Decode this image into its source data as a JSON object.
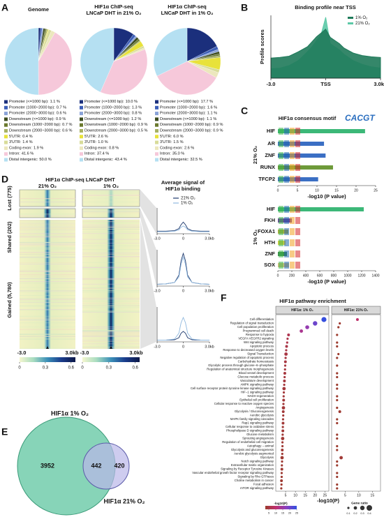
{
  "chart_data": [
    {
      "type": "pie",
      "panel": "A",
      "title": [
        "Genome"
      ],
      "categories": [
        "Promoter (<=1000 bp):",
        "Promoter (1000~2000 bp):",
        "Promoter (2000~3000 bp):",
        "Downstream (<=1000 bp):",
        "Downstream (1000~2000 bp):",
        "Downstream (2000~3000 bp):",
        "5'UTR:",
        "3'UTR:",
        "Coding exon:",
        "Intron:",
        "Distal intergenic:"
      ],
      "values": [
        1.1,
        0.7,
        0.6,
        0.9,
        0.7,
        0.6,
        0.4,
        1.4,
        1.9,
        41.6,
        50.0
      ],
      "value_labels": [
        "1.1 %",
        "0.7 %",
        "0.6 %",
        "0.9 %",
        "0.7 %",
        "0.6 %",
        "0.4 %",
        "1.4 %",
        "1.9 %",
        "41.6 %",
        "50.0 %"
      ],
      "colors": [
        "#1b2f7c",
        "#3d5fb8",
        "#8aa2d8",
        "#3b4a1e",
        "#6b7a2e",
        "#a8b264",
        "#e8e23a",
        "#d8dc9a",
        "#ece7bd",
        "#f6c8da",
        "#b5e0f2"
      ]
    },
    {
      "type": "pie",
      "title": [
        "HIF1α ChIP-seq",
        "LNCaP DHT in 21% O₂"
      ],
      "categories": [
        "Promoter (<=1000 bp):",
        "Promoter (1000~2000 bp):",
        "Promoter (2000~3000 bp):",
        "Downstream (<=1000 bp):",
        "Downstream (1000~2000 bp):",
        "Downstream (2000~3000 bp):",
        "5'UTR:",
        "3'UTR:",
        "Coding exon:",
        "Intron:",
        "Distal intergenic:"
      ],
      "values": [
        10.0,
        1.3,
        0.8,
        1.2,
        0.9,
        0.5,
        2.6,
        1.0,
        0.8,
        37.4,
        43.4
      ],
      "value_labels": [
        "10.0 %",
        "1.3 %",
        "0.8 %",
        "1.2 %",
        "0.9 %",
        "0.5 %",
        "2.6 %",
        "1.0 %",
        "0.8 %",
        "37.4 %",
        "43.4 %"
      ],
      "colors": [
        "#1b2f7c",
        "#3d5fb8",
        "#8aa2d8",
        "#3b4a1e",
        "#6b7a2e",
        "#a8b264",
        "#e8e23a",
        "#d8dc9a",
        "#ece7bd",
        "#f6c8da",
        "#b5e0f2"
      ]
    },
    {
      "type": "pie",
      "title": [
        "HIF1α ChIP-seq",
        "LNCaP DHT in 1% O₂"
      ],
      "categories": [
        "Promoter (<=1000 bp):",
        "Promoter (1000~2000 bp):",
        "Promoter (2000~3000 bp):",
        "Downstream (<=1000 bp):",
        "Downstream (1000~2000 bp):",
        "Downstream (2000~3000 bp):",
        "5'UTR:",
        "3'UTR:",
        "Coding exon:",
        "Intron:",
        "Distal intergenic:"
      ],
      "values": [
        17.7,
        1.6,
        1.1,
        1.1,
        0.9,
        0.9,
        6.0,
        1.5,
        2.6,
        35.0,
        32.5
      ],
      "value_labels": [
        "17.7 %",
        "1.6 %",
        "1.1 %",
        "1.1 %",
        "0.9 %",
        "0.9 %",
        "6.0 %",
        "1.5 %",
        "2.6 %",
        "35.0 %",
        "32.5 %"
      ],
      "colors": [
        "#1b2f7c",
        "#3d5fb8",
        "#8aa2d8",
        "#3b4a1e",
        "#6b7a2e",
        "#a8b264",
        "#e8e23a",
        "#d8dc9a",
        "#ece7bd",
        "#f6c8da",
        "#b5e0f2"
      ]
    },
    {
      "type": "area",
      "panel": "B",
      "title": "Binding profile near TSS",
      "ylabel": "Profile scores",
      "x": [
        -3,
        -2.5,
        -2,
        -1.5,
        -1,
        -0.75,
        -0.5,
        -0.25,
        0,
        0.25,
        0.5,
        0.75,
        1,
        1.5,
        2,
        2.5,
        3
      ],
      "xlim": [
        -3,
        3
      ],
      "ylim": [
        0,
        1
      ],
      "xticks": [
        {
          "value": -3,
          "label": "-3.0"
        },
        {
          "value": 0,
          "label": "TSS"
        },
        {
          "value": 3,
          "label": "3.0kb"
        }
      ],
      "series": [
        {
          "name": "1% O₂",
          "color": "#1f7a5a",
          "values": [
            0.32,
            0.33,
            0.35,
            0.42,
            0.5,
            0.58,
            0.66,
            0.72,
            0.78,
            0.65,
            0.6,
            0.55,
            0.48,
            0.4,
            0.36,
            0.34,
            0.33
          ]
        },
        {
          "name": "21% O₂",
          "color": "#5cc9a7",
          "values": [
            0.15,
            0.16,
            0.2,
            0.28,
            0.42,
            0.5,
            0.6,
            0.7,
            0.97,
            0.55,
            0.5,
            0.45,
            0.38,
            0.28,
            0.22,
            0.18,
            0.16
          ]
        }
      ]
    },
    {
      "type": "hbar",
      "panel": "C",
      "title": "HIF1α consensus motif",
      "motif": "CACGT",
      "group": "21% O₂",
      "categories": [
        "HIF",
        "AR",
        "ZNF",
        "RUNX",
        "TFCP2"
      ],
      "values": [
        22.3,
        11.8,
        12.2,
        14.1,
        10.3
      ],
      "colors": [
        "#3cb878",
        "#3b6fc4",
        "#3b6fc4",
        "#6e9a3a",
        "#3b6fc4"
      ],
      "xlim": [
        0,
        25
      ],
      "xticks": [
        0,
        5,
        10,
        15,
        20,
        25
      ],
      "xlabel": "-log10 (P value)"
    },
    {
      "type": "hbar",
      "group": "1% O₂",
      "categories": [
        "HIF",
        "FKH",
        "FOXA1",
        "HTH",
        "ZNF",
        "SOX"
      ],
      "values": [
        1230,
        200,
        150,
        110,
        130,
        160
      ],
      "colors": [
        "#3cb878",
        "#6a3fa0",
        "#b8b040",
        "#e0d040",
        "#3a8a4a",
        "#d8c080"
      ],
      "xlim": [
        0,
        1400
      ],
      "xticks": [
        0,
        200,
        400,
        600,
        800,
        1000,
        1200,
        1400
      ],
      "xlabel": "-log10 (P value)"
    },
    {
      "type": "heatmap",
      "panel": "D",
      "title": "HIF1α ChIP-seq LNCaP DHT",
      "columns": [
        "21% O₂",
        "1% O₂"
      ],
      "groups": [
        "Lost (775)",
        "Shared (202)",
        "Gained (5,780)"
      ],
      "xlim": [
        -3,
        3
      ],
      "xticks": [
        {
          "value": -3,
          "label": "-3.0"
        },
        {
          "value": 3,
          "label": "3.0kb"
        }
      ],
      "clim": [
        0,
        0.65
      ],
      "colorbar_ticks": [
        0,
        0.3,
        0.6
      ],
      "colorbar_colors": [
        "#f5f6cf",
        "#a8dcc0",
        "#3b8fb8",
        "#1a3c8c",
        "#0b1747"
      ]
    },
    {
      "type": "line",
      "title": [
        "Average signal of",
        "HIF1α binding"
      ],
      "x": [
        -3,
        -2,
        -1,
        -0.5,
        -0.25,
        0,
        0.25,
        0.5,
        1,
        2,
        3
      ],
      "xlim": [
        -3,
        3
      ],
      "ylim": [
        0,
        1
      ],
      "xticks": [
        {
          "value": -3,
          "label": "-3.0"
        },
        0,
        {
          "value": 3,
          "label": "3.0kb"
        }
      ],
      "series": [
        {
          "name": "21% O₂",
          "color": "#1f3a6e",
          "values": [
            0.1,
            0.1,
            0.12,
            0.2,
            0.35,
            0.45,
            0.35,
            0.2,
            0.12,
            0.1,
            0.1
          ]
        },
        {
          "name": "1% O₂",
          "color": "#8fb8de",
          "values": [
            0.08,
            0.08,
            0.1,
            0.15,
            0.25,
            0.3,
            0.25,
            0.15,
            0.1,
            0.08,
            0.08
          ]
        }
      ]
    },
    {
      "type": "line",
      "x": [
        -3,
        -2,
        -1,
        -0.5,
        -0.25,
        0,
        0.25,
        0.5,
        1,
        2,
        3
      ],
      "xlim": [
        -3,
        3
      ],
      "ylim": [
        0,
        1
      ],
      "xticks": [
        {
          "value": -3,
          "label": "-3.0"
        },
        0,
        {
          "value": 3,
          "label": "3.0kb"
        }
      ],
      "series": [
        {
          "color": "#1f3a6e",
          "values": [
            0.05,
            0.06,
            0.1,
            0.3,
            0.7,
            0.9,
            0.7,
            0.3,
            0.1,
            0.06,
            0.05
          ]
        },
        {
          "color": "#8fb8de",
          "values": [
            0.05,
            0.06,
            0.1,
            0.25,
            0.6,
            0.8,
            0.6,
            0.25,
            0.1,
            0.06,
            0.05
          ]
        }
      ]
    },
    {
      "type": "line",
      "x": [
        -3,
        -2,
        -1,
        -0.5,
        -0.25,
        0,
        0.25,
        0.5,
        1,
        2,
        3
      ],
      "xlim": [
        -3,
        3
      ],
      "ylim": [
        0,
        1
      ],
      "xticks": [
        {
          "value": -3,
          "label": "-3.0"
        },
        0,
        {
          "value": 3,
          "label": "3.0kb"
        }
      ],
      "series": [
        {
          "color": "#1f3a6e",
          "values": [
            0.05,
            0.05,
            0.06,
            0.12,
            0.25,
            0.3,
            0.25,
            0.12,
            0.06,
            0.05,
            0.05
          ]
        },
        {
          "color": "#8fb8de",
          "values": [
            0.05,
            0.05,
            0.08,
            0.25,
            0.55,
            0.7,
            0.55,
            0.25,
            0.08,
            0.05,
            0.05
          ]
        }
      ]
    },
    {
      "type": "venn",
      "panel": "E",
      "sets": [
        "HIF1α 1% O₂",
        "HIF1α 21% O₂"
      ],
      "colors": [
        "#5fc6a0",
        "#b9b7e8"
      ],
      "values": [
        3952,
        442,
        420
      ]
    },
    {
      "type": "dot",
      "panel": "F",
      "title": "HIF1α pathway enrichment",
      "xlabel": "-log10(P)",
      "categories": [
        "Cell differentiation",
        "Regulation of signal transduction",
        "Cell population proliferation",
        "Programmed cell death",
        "Response to hypoxia",
        "VEGFA VEGFR2 signaling",
        "Wnt signaling pathway",
        "Apoptotic process",
        "Response to decreased oxygen levels",
        "Signal Transduction",
        "Negative regulation of apoptotic process",
        "Carbohydrate homeostasis",
        "Glycolytic process through glucose−6−phosphate",
        "Regulation of anatomical structure morphogenesis",
        "Blood vessel development",
        "Glucose metabolic process",
        "Vasculature development",
        "AMPK signaling pathway",
        "Cell surface receptor protein tyrosine kinase signaling pathway",
        "HIF−1 signaling pathway",
        "NADH regeneration",
        "Epithelial cell proliferation",
        "Cellular response to reactive oxygen species",
        "Angiogenesis",
        "Glycolysis / Gluconeogenesis",
        "Aerobic glycolysis",
        "MAPK family signaling cascades",
        "Rap1 signaling pathway",
        "Cellular response to oxidative stress",
        "Phospholipase D signaling pathway",
        "Glucose metabolism",
        "Sprouting angiogenesis",
        "Regulation of endothelial cell migration",
        "Autophagy − animal",
        "Glycolysis and gluconeogenesis",
        "Aerobic glycolysis augmented",
        "Glycolysis",
        "Notch signaling pathway",
        "Extracellular matrix organization",
        "Signaling by Receptor Tyrosine Kinases",
        "Vascular endothelial growth factor receptor signaling pathway",
        "Signaling by Rho GTPases",
        "Choline metabolism in cancer",
        "Focal adhesion",
        "mTOR signaling pathway"
      ],
      "series": [
        {
          "name": "HIF1α: 1% O₂",
          "xlim": [
            0,
            27
          ],
          "xticks": [
            5,
            10,
            15,
            20,
            25
          ],
          "values": [
            24.5,
            20,
            16,
            13,
            6.5,
            6,
            5.8,
            5.5,
            5.3,
            5.2,
            5,
            4.9,
            4.8,
            4.7,
            4.6,
            4.5,
            4.4,
            4.3,
            4.2,
            4.1,
            4,
            4,
            3.9,
            3.9,
            3.8,
            3.8,
            3.7,
            3.7,
            3.6,
            3.6,
            3.5,
            3.5,
            3.4,
            3.4,
            3.3,
            3.3,
            3.2,
            3.2,
            3.1,
            3.1,
            3,
            3,
            2.9,
            2.9,
            2.8
          ],
          "sizes": [
            0.35,
            0.3,
            0.25,
            0.2,
            0.15,
            0.1,
            0.1,
            0.15,
            0.1,
            0.2,
            0.1,
            0.15,
            0.1,
            0.1,
            0.15,
            0.1,
            0.15,
            0.1,
            0.2,
            0.1,
            0.1,
            0.15,
            0.1,
            0.2,
            0.15,
            0.1,
            0.1,
            0.15,
            0.1,
            0.15,
            0.1,
            0.2,
            0.1,
            0.1,
            0.15,
            0.1,
            0.2,
            0.1,
            0.1,
            0.15,
            0.1,
            0.1,
            0.15,
            0.1,
            0.1
          ]
        },
        {
          "name": "HIF1α: 21% O₂",
          "xlim": [
            0,
            18
          ],
          "xticks": [
            5,
            10,
            15
          ],
          "values": [
            9.5,
            3,
            2.5,
            null,
            2,
            null,
            2,
            2,
            null,
            2.5,
            2,
            null,
            2,
            null,
            2,
            2,
            null,
            2,
            2,
            null,
            2,
            2,
            null,
            2,
            3,
            null,
            2,
            2,
            null,
            null,
            2,
            2,
            null,
            2,
            2,
            null,
            3.5,
            2,
            2,
            null,
            2,
            2,
            null,
            2,
            2
          ],
          "sizes": [
            0.15,
            0.1,
            0.1,
            null,
            0.1,
            null,
            0.1,
            0.1,
            null,
            0.1,
            0.1,
            null,
            0.1,
            null,
            0.1,
            0.1,
            null,
            0.1,
            0.1,
            null,
            0.1,
            0.1,
            null,
            0.1,
            0.15,
            null,
            0.1,
            0.1,
            null,
            null,
            0.1,
            0.1,
            null,
            0.1,
            0.1,
            null,
            0.2,
            0.1,
            0.1,
            null,
            0.1,
            0.1,
            null,
            0.1,
            0.1
          ]
        }
      ],
      "clim": [
        2.5,
        25
      ],
      "colors": [
        "#9c3b2e",
        "#c0306e",
        "#8a3fc0",
        "#3050e0"
      ],
      "colorbar_ticks": [
        5,
        10,
        15,
        20,
        25
      ],
      "size_title": "Gene ratio",
      "size_ticks": [
        0.1,
        0.2,
        0.3,
        0.4
      ]
    }
  ]
}
